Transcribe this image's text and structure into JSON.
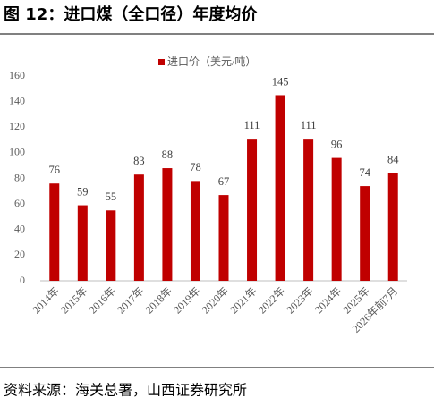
{
  "chart_data": {
    "type": "bar",
    "title": "图 12：进口煤（全口径）年度均价",
    "categories": [
      "2014年",
      "2015年",
      "2016年",
      "2017年",
      "2018年",
      "2019年",
      "2020年",
      "2021年",
      "2022年",
      "2023年",
      "2024年",
      "2025年",
      "2026年前7月"
    ],
    "series": [
      {
        "name": "进口价（美元/吨）",
        "color": "#c00000",
        "values": [
          76,
          59,
          55,
          83,
          88,
          78,
          67,
          111,
          145,
          111,
          96,
          74,
          84
        ]
      }
    ],
    "ylim": [
      0,
      160
    ],
    "yticks": [
      0,
      20,
      40,
      60,
      80,
      100,
      120,
      140,
      160
    ],
    "grid": false,
    "legend": "top",
    "source": "资料来源：海关总署，山西证券研究所"
  }
}
